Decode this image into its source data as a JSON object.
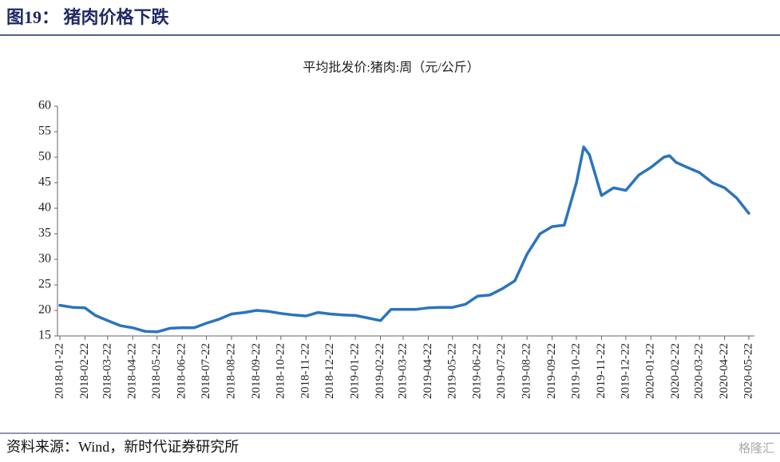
{
  "header": "图19：  猪肉价格下跌",
  "source": "资料来源：Wind，新时代证券研究所",
  "watermark": "格隆汇",
  "chart_data": {
    "type": "line",
    "title": "平均批发价:猪肉:周（元/公斤）",
    "color": "#2b74bd",
    "x": [
      "2018-01-22",
      "2018-02-07",
      "2018-02-22",
      "2018-03-07",
      "2018-03-22",
      "2018-04-07",
      "2018-04-22",
      "2018-05-07",
      "2018-05-22",
      "2018-06-07",
      "2018-06-22",
      "2018-07-07",
      "2018-07-22",
      "2018-08-07",
      "2018-08-22",
      "2018-09-07",
      "2018-09-22",
      "2018-10-07",
      "2018-10-22",
      "2018-11-07",
      "2018-11-22",
      "2018-12-07",
      "2018-12-22",
      "2019-01-07",
      "2019-01-22",
      "2019-02-07",
      "2019-02-22",
      "2019-03-07",
      "2019-03-22",
      "2019-04-07",
      "2019-04-22",
      "2019-05-07",
      "2019-05-22",
      "2019-06-07",
      "2019-06-22",
      "2019-07-07",
      "2019-07-22",
      "2019-08-07",
      "2019-08-22",
      "2019-09-07",
      "2019-09-22",
      "2019-10-07",
      "2019-10-22",
      "2019-10-31",
      "2019-11-07",
      "2019-11-22",
      "2019-12-07",
      "2019-12-22",
      "2020-01-07",
      "2020-01-22",
      "2020-02-07",
      "2020-02-14",
      "2020-02-22",
      "2020-03-07",
      "2020-03-22",
      "2020-04-07",
      "2020-04-22",
      "2020-05-07",
      "2020-05-22"
    ],
    "values": [
      21.0,
      20.6,
      20.5,
      19.0,
      18.0,
      17.0,
      16.6,
      15.9,
      15.8,
      16.5,
      16.6,
      16.6,
      17.5,
      18.3,
      19.3,
      19.6,
      20.0,
      19.8,
      19.4,
      19.1,
      18.9,
      19.6,
      19.3,
      19.1,
      19.0,
      18.5,
      18.0,
      20.2,
      20.2,
      20.2,
      20.5,
      20.6,
      20.6,
      21.2,
      22.8,
      23.0,
      24.2,
      25.8,
      31.0,
      35.0,
      36.4,
      36.7,
      45.0,
      52.0,
      50.5,
      42.5,
      44.0,
      43.5,
      46.5,
      48.0,
      50.0,
      50.3,
      49.0,
      48.0,
      47.0,
      45.0,
      44.0,
      42.0,
      39.0
    ],
    "xlim": [
      "2018-01-22",
      "2020-05-22"
    ],
    "xticks": [
      "2018-01-22",
      "2018-02-22",
      "2018-03-22",
      "2018-04-22",
      "2018-05-22",
      "2018-06-22",
      "2018-07-22",
      "2018-08-22",
      "2018-09-22",
      "2018-10-22",
      "2018-11-22",
      "2018-12-22",
      "2019-01-22",
      "2019-02-22",
      "2019-03-22",
      "2019-04-22",
      "2019-05-22",
      "2019-06-22",
      "2019-07-22",
      "2019-08-22",
      "2019-09-22",
      "2019-10-22",
      "2019-11-22",
      "2019-12-22",
      "2020-01-22",
      "2020-02-22",
      "2020-03-22",
      "2020-04-22",
      "2020-05-22"
    ],
    "ylim": [
      15,
      60
    ],
    "yticks": [
      15,
      20,
      25,
      30,
      35,
      40,
      45,
      50,
      55,
      60
    ]
  }
}
